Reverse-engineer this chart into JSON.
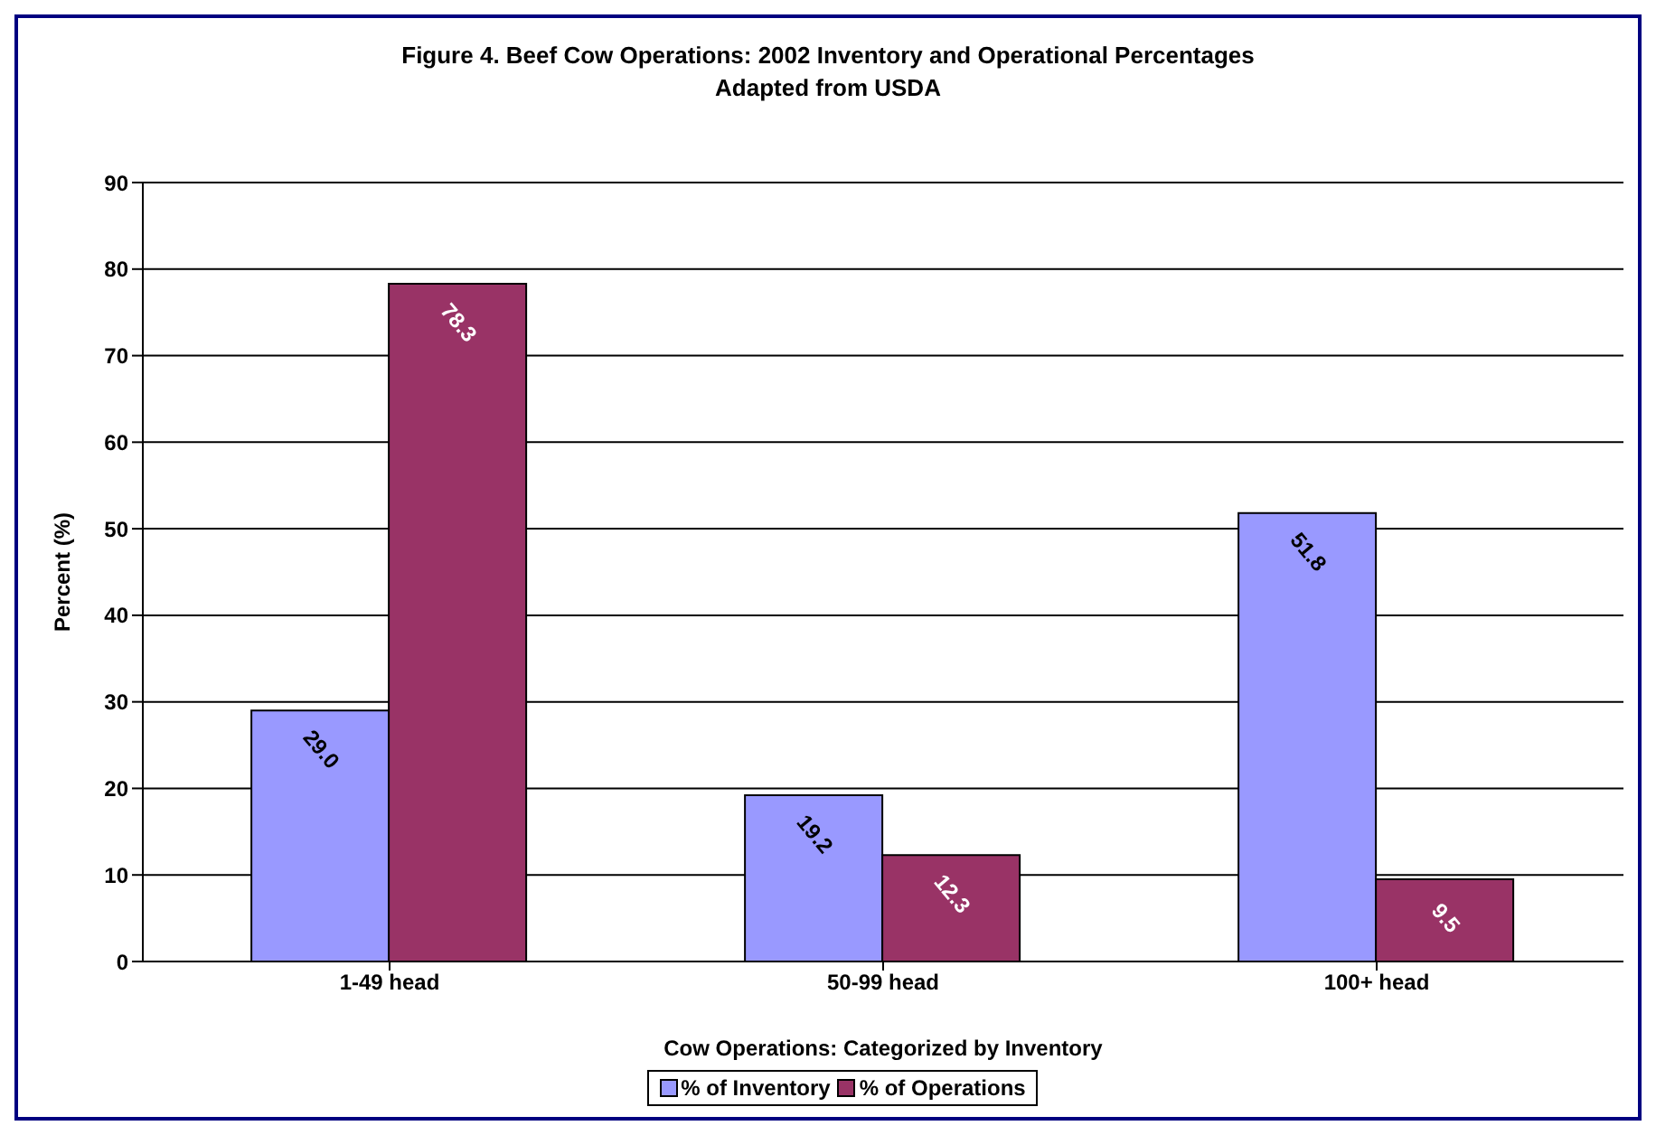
{
  "chart_data": {
    "type": "bar",
    "title": "Figure 4. Beef Cow Operations: 2002 Inventory and Operational Percentages",
    "subtitle": "Adapted from USDA",
    "xlabel": "Cow Operations: Categorized by Inventory",
    "ylabel": "Percent (%)",
    "categories": [
      "1-49 head",
      "50-99 head",
      "100+ head"
    ],
    "series": [
      {
        "name": "% of Inventory",
        "color": "#9999ff",
        "values": [
          29.0,
          19.2,
          51.8
        ],
        "value_labels": [
          "29.0",
          "19.2",
          "51.8"
        ]
      },
      {
        "name": "% of Operations",
        "color": "#993366",
        "values": [
          78.3,
          12.3,
          9.5
        ],
        "value_labels": [
          "78.3",
          "12.3",
          "9.5"
        ]
      }
    ],
    "ylim": [
      0,
      90
    ],
    "yticks": [
      0,
      10,
      20,
      30,
      40,
      50,
      60,
      70,
      80,
      90
    ],
    "grid": "y",
    "legend": "bottom"
  }
}
